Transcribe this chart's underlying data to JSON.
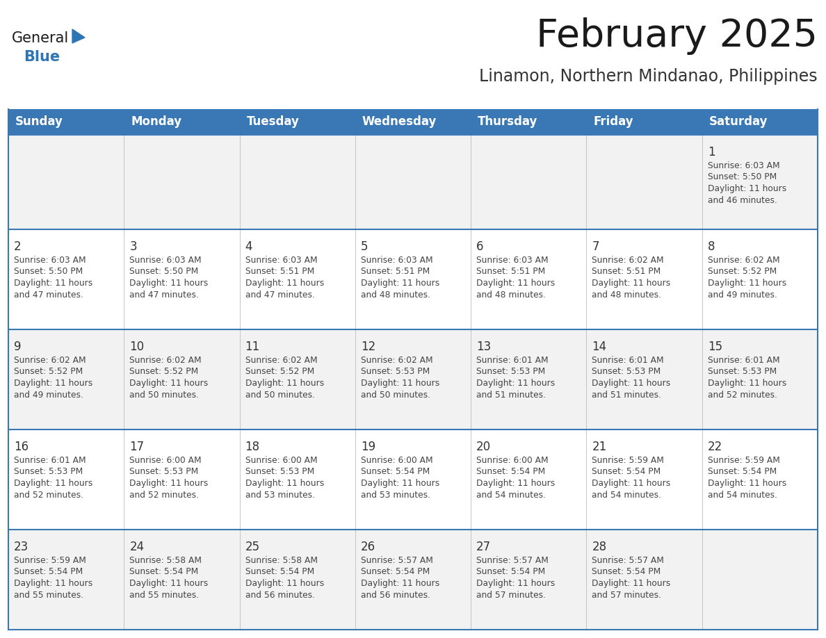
{
  "title": "February 2025",
  "subtitle": "Linamon, Northern Mindanao, Philippines",
  "days_of_week": [
    "Sunday",
    "Monday",
    "Tuesday",
    "Wednesday",
    "Thursday",
    "Friday",
    "Saturday"
  ],
  "header_bg": "#3A78B5",
  "header_text": "#FFFFFF",
  "row_bg_1": "#F2F2F2",
  "row_bg_2": "#FFFFFF",
  "border_color": "#3A78B5",
  "cell_border_color": "#AAAAAA",
  "text_color": "#444444",
  "day_num_color": "#333333",
  "title_color": "#1a1a1a",
  "subtitle_color": "#333333",
  "logo_general_color": "#1a1a1a",
  "logo_blue_color": "#2E75B6",
  "calendar_data": [
    [
      null,
      null,
      null,
      null,
      null,
      null,
      {
        "day": 1,
        "sunrise": "6:03 AM",
        "sunset": "5:50 PM",
        "daylight": "11 hours and 46 minutes."
      }
    ],
    [
      {
        "day": 2,
        "sunrise": "6:03 AM",
        "sunset": "5:50 PM",
        "daylight": "11 hours and 47 minutes."
      },
      {
        "day": 3,
        "sunrise": "6:03 AM",
        "sunset": "5:50 PM",
        "daylight": "11 hours and 47 minutes."
      },
      {
        "day": 4,
        "sunrise": "6:03 AM",
        "sunset": "5:51 PM",
        "daylight": "11 hours and 47 minutes."
      },
      {
        "day": 5,
        "sunrise": "6:03 AM",
        "sunset": "5:51 PM",
        "daylight": "11 hours and 48 minutes."
      },
      {
        "day": 6,
        "sunrise": "6:03 AM",
        "sunset": "5:51 PM",
        "daylight": "11 hours and 48 minutes."
      },
      {
        "day": 7,
        "sunrise": "6:02 AM",
        "sunset": "5:51 PM",
        "daylight": "11 hours and 48 minutes."
      },
      {
        "day": 8,
        "sunrise": "6:02 AM",
        "sunset": "5:52 PM",
        "daylight": "11 hours and 49 minutes."
      }
    ],
    [
      {
        "day": 9,
        "sunrise": "6:02 AM",
        "sunset": "5:52 PM",
        "daylight": "11 hours and 49 minutes."
      },
      {
        "day": 10,
        "sunrise": "6:02 AM",
        "sunset": "5:52 PM",
        "daylight": "11 hours and 50 minutes."
      },
      {
        "day": 11,
        "sunrise": "6:02 AM",
        "sunset": "5:52 PM",
        "daylight": "11 hours and 50 minutes."
      },
      {
        "day": 12,
        "sunrise": "6:02 AM",
        "sunset": "5:53 PM",
        "daylight": "11 hours and 50 minutes."
      },
      {
        "day": 13,
        "sunrise": "6:01 AM",
        "sunset": "5:53 PM",
        "daylight": "11 hours and 51 minutes."
      },
      {
        "day": 14,
        "sunrise": "6:01 AM",
        "sunset": "5:53 PM",
        "daylight": "11 hours and 51 minutes."
      },
      {
        "day": 15,
        "sunrise": "6:01 AM",
        "sunset": "5:53 PM",
        "daylight": "11 hours and 52 minutes."
      }
    ],
    [
      {
        "day": 16,
        "sunrise": "6:01 AM",
        "sunset": "5:53 PM",
        "daylight": "11 hours and 52 minutes."
      },
      {
        "day": 17,
        "sunrise": "6:00 AM",
        "sunset": "5:53 PM",
        "daylight": "11 hours and 52 minutes."
      },
      {
        "day": 18,
        "sunrise": "6:00 AM",
        "sunset": "5:53 PM",
        "daylight": "11 hours and 53 minutes."
      },
      {
        "day": 19,
        "sunrise": "6:00 AM",
        "sunset": "5:54 PM",
        "daylight": "11 hours and 53 minutes."
      },
      {
        "day": 20,
        "sunrise": "6:00 AM",
        "sunset": "5:54 PM",
        "daylight": "11 hours and 54 minutes."
      },
      {
        "day": 21,
        "sunrise": "5:59 AM",
        "sunset": "5:54 PM",
        "daylight": "11 hours and 54 minutes."
      },
      {
        "day": 22,
        "sunrise": "5:59 AM",
        "sunset": "5:54 PM",
        "daylight": "11 hours and 54 minutes."
      }
    ],
    [
      {
        "day": 23,
        "sunrise": "5:59 AM",
        "sunset": "5:54 PM",
        "daylight": "11 hours and 55 minutes."
      },
      {
        "day": 24,
        "sunrise": "5:58 AM",
        "sunset": "5:54 PM",
        "daylight": "11 hours and 55 minutes."
      },
      {
        "day": 25,
        "sunrise": "5:58 AM",
        "sunset": "5:54 PM",
        "daylight": "11 hours and 56 minutes."
      },
      {
        "day": 26,
        "sunrise": "5:57 AM",
        "sunset": "5:54 PM",
        "daylight": "11 hours and 56 minutes."
      },
      {
        "day": 27,
        "sunrise": "5:57 AM",
        "sunset": "5:54 PM",
        "daylight": "11 hours and 57 minutes."
      },
      {
        "day": 28,
        "sunrise": "5:57 AM",
        "sunset": "5:54 PM",
        "daylight": "11 hours and 57 minutes."
      },
      null
    ]
  ]
}
